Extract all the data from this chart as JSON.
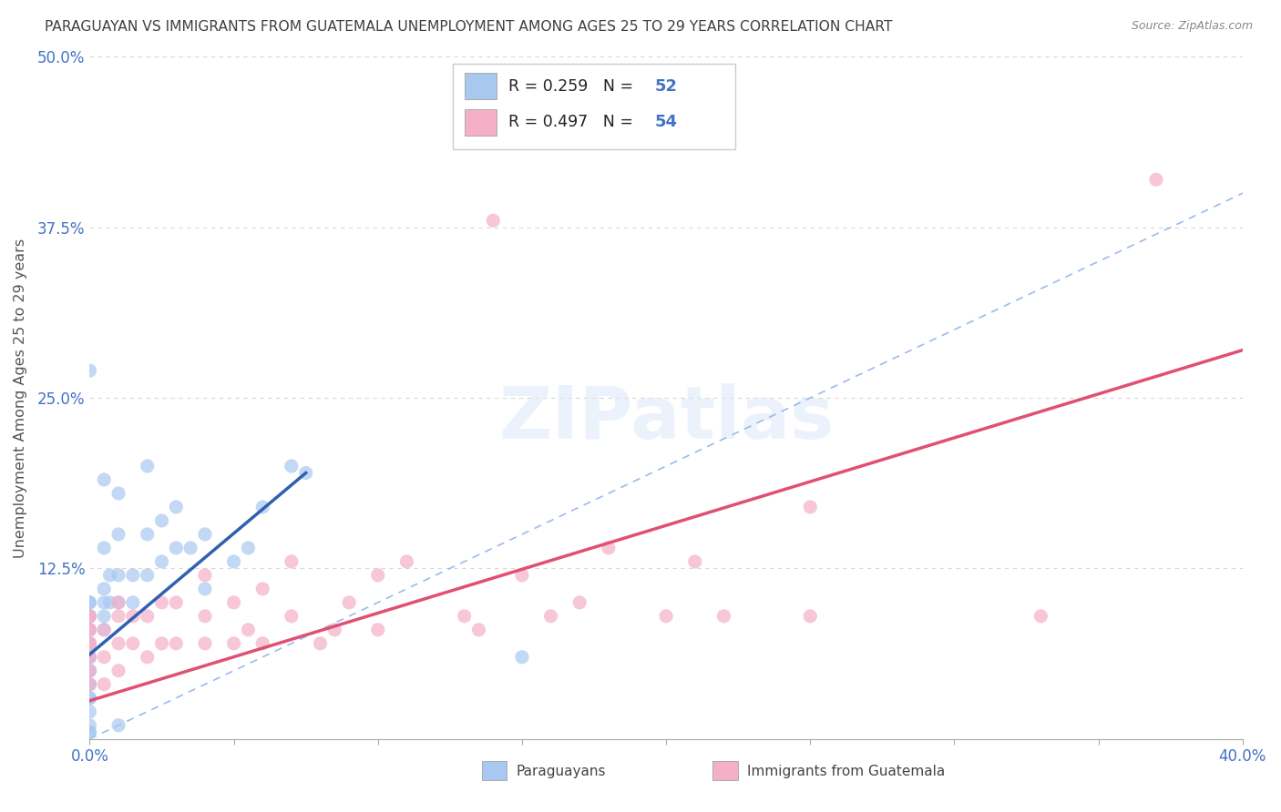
{
  "title": "PARAGUAYAN VS IMMIGRANTS FROM GUATEMALA UNEMPLOYMENT AMONG AGES 25 TO 29 YEARS CORRELATION CHART",
  "source": "Source: ZipAtlas.com",
  "ylabel": "Unemployment Among Ages 25 to 29 years",
  "xlim": [
    0.0,
    0.4
  ],
  "ylim": [
    0.0,
    0.5
  ],
  "yticks": [
    0.0,
    0.125,
    0.25,
    0.375,
    0.5
  ],
  "yticklabels": [
    "",
    "12.5%",
    "25.0%",
    "37.5%",
    "50.0%"
  ],
  "blue_R": 0.259,
  "blue_N": 52,
  "pink_R": 0.497,
  "pink_N": 54,
  "blue_color": "#a8c8f0",
  "pink_color": "#f5b0c8",
  "blue_line_color": "#3060b0",
  "pink_line_color": "#e05070",
  "diagonal_color": "#8ab0e8",
  "background_color": "#ffffff",
  "grid_color": "#d8d8d8",
  "title_color": "#404040",
  "axis_label_color": "#4472c4",
  "ylabel_color": "#555555",
  "legend_label_blue": "Paraguayans",
  "legend_label_pink": "Immigrants from Guatemala",
  "blue_line_x0": 0.0,
  "blue_line_x1": 0.075,
  "blue_line_y0": 0.062,
  "blue_line_y1": 0.195,
  "pink_line_x0": 0.0,
  "pink_line_x1": 0.4,
  "pink_line_y0": 0.028,
  "pink_line_y1": 0.285,
  "blue_x": [
    0.0,
    0.0,
    0.0,
    0.0,
    0.0,
    0.0,
    0.0,
    0.0,
    0.0,
    0.0,
    0.0,
    0.0,
    0.0,
    0.0,
    0.0,
    0.0,
    0.0,
    0.0,
    0.0,
    0.0,
    0.005,
    0.005,
    0.005,
    0.005,
    0.005,
    0.005,
    0.007,
    0.007,
    0.01,
    0.01,
    0.01,
    0.01,
    0.015,
    0.015,
    0.02,
    0.02,
    0.02,
    0.025,
    0.025,
    0.03,
    0.03,
    0.035,
    0.04,
    0.04,
    0.05,
    0.055,
    0.06,
    0.07,
    0.075,
    0.0,
    0.01,
    0.15
  ],
  "blue_y": [
    0.03,
    0.04,
    0.05,
    0.06,
    0.06,
    0.07,
    0.07,
    0.08,
    0.08,
    0.09,
    0.09,
    0.1,
    0.1,
    0.05,
    0.04,
    0.03,
    0.02,
    0.01,
    0.005,
    0.005,
    0.08,
    0.09,
    0.1,
    0.11,
    0.14,
    0.19,
    0.1,
    0.12,
    0.1,
    0.12,
    0.15,
    0.18,
    0.1,
    0.12,
    0.12,
    0.15,
    0.2,
    0.13,
    0.16,
    0.14,
    0.17,
    0.14,
    0.11,
    0.15,
    0.13,
    0.14,
    0.17,
    0.2,
    0.195,
    0.27,
    0.01,
    0.06
  ],
  "pink_x": [
    0.0,
    0.0,
    0.0,
    0.0,
    0.0,
    0.0,
    0.0,
    0.0,
    0.0,
    0.005,
    0.005,
    0.005,
    0.01,
    0.01,
    0.01,
    0.01,
    0.015,
    0.015,
    0.02,
    0.02,
    0.025,
    0.025,
    0.03,
    0.03,
    0.04,
    0.04,
    0.04,
    0.05,
    0.05,
    0.055,
    0.06,
    0.06,
    0.07,
    0.07,
    0.08,
    0.085,
    0.09,
    0.1,
    0.1,
    0.11,
    0.13,
    0.135,
    0.15,
    0.16,
    0.17,
    0.18,
    0.2,
    0.21,
    0.22,
    0.25,
    0.25,
    0.33,
    0.37,
    0.14
  ],
  "pink_y": [
    0.04,
    0.05,
    0.06,
    0.07,
    0.07,
    0.08,
    0.08,
    0.09,
    0.09,
    0.04,
    0.06,
    0.08,
    0.05,
    0.07,
    0.09,
    0.1,
    0.07,
    0.09,
    0.06,
    0.09,
    0.07,
    0.1,
    0.07,
    0.1,
    0.07,
    0.09,
    0.12,
    0.07,
    0.1,
    0.08,
    0.07,
    0.11,
    0.09,
    0.13,
    0.07,
    0.08,
    0.1,
    0.08,
    0.12,
    0.13,
    0.09,
    0.08,
    0.12,
    0.09,
    0.1,
    0.14,
    0.09,
    0.13,
    0.09,
    0.17,
    0.09,
    0.09,
    0.41,
    0.38
  ]
}
